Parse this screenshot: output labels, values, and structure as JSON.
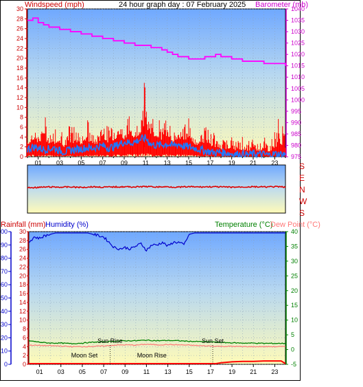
{
  "top_chart": {
    "title": "24 hour graph day : 07 February 2025",
    "left_label": "Windspeed (mph)",
    "right_label": "Barometer (mb)"
  },
  "direction_panel": {
    "compass_labels": [
      "S",
      "E",
      "N",
      "W",
      "S"
    ]
  },
  "bottom_chart": {
    "left_label_a": "Rainfall (mm)",
    "left_label_b": "Humidity (%)",
    "right_label_a": "Temperature (°C)",
    "right_label_b": "Dew Point (°C)",
    "annotations": [
      {
        "text": "Moon Set",
        "hour": 5.2
      },
      {
        "text": "Moon Rise",
        "hour": 11.5
      },
      {
        "text": "Sun Rise",
        "hour": 7.6
      },
      {
        "text": "Sun Set",
        "hour": 17.2
      }
    ]
  },
  "colors": {
    "wind_gust": "#ff0000",
    "wind_avg": "#1e78ff",
    "barometer": "#ff00ff",
    "direction": "#dd0000",
    "humidity": "#0000cc",
    "temperature": "#008000",
    "dew_point": "#ff7777",
    "rainfall": "#ff0000",
    "wind_axis": "#cc0000",
    "baro_axis": "#cc00cc",
    "humidity_axis": "#0000cc",
    "temp_axis": "#008000"
  },
  "chart_data": [
    {
      "type": "line",
      "title": "24 hour graph day : 07 February 2025",
      "xlabel": "",
      "ylabel": "Windspeed (mph)",
      "y2label": "Barometer (mb)",
      "x_ticks": [
        "01",
        "03",
        "05",
        "07",
        "09",
        "11",
        "13",
        "15",
        "17",
        "19",
        "21",
        "23"
      ],
      "xlim": [
        0,
        24
      ],
      "ylim": [
        0,
        30
      ],
      "y_ticks": [
        0,
        2,
        4,
        6,
        8,
        10,
        12,
        14,
        16,
        18,
        20,
        22,
        24,
        26,
        28,
        30
      ],
      "y2lim": [
        975,
        1040
      ],
      "y2_ticks": [
        975,
        980,
        985,
        990,
        995,
        1000,
        1005,
        1010,
        1015,
        1020,
        1025,
        1030,
        1035,
        1040
      ],
      "grid": true,
      "series": [
        {
          "name": "Barometer (mb)",
          "axis": "right",
          "x": [
            0,
            0.5,
            1,
            1.5,
            2,
            2.5,
            3,
            3.5,
            4,
            4.5,
            5,
            5.5,
            6,
            6.5,
            7,
            7.5,
            8,
            8.5,
            9,
            9.5,
            10,
            10.5,
            11,
            11.5,
            12,
            12.5,
            13,
            13.5,
            14,
            14.5,
            15,
            15.5,
            16,
            16.5,
            17,
            17.5,
            18,
            18.5,
            19,
            19.5,
            20,
            20.5,
            21,
            21.5,
            22,
            22.5,
            23,
            23.5,
            24
          ],
          "values": [
            1035,
            1036,
            1034,
            1033,
            1032,
            1032,
            1031,
            1031,
            1030,
            1030,
            1029,
            1029,
            1028,
            1028,
            1027,
            1027,
            1026,
            1026,
            1025,
            1025,
            1024,
            1024,
            1024,
            1023,
            1023,
            1022,
            1021,
            1020,
            1019,
            1019,
            1018,
            1018,
            1018,
            1019,
            1019,
            1020,
            1019,
            1019,
            1018,
            1018,
            1017,
            1017,
            1017,
            1017,
            1016,
            1016,
            1016,
            1016,
            1015
          ]
        },
        {
          "name": "Wind gust (mph)",
          "axis": "left",
          "x": [
            0,
            0.5,
            1,
            1.5,
            2,
            2.5,
            3,
            3.5,
            4,
            4.5,
            5,
            5.5,
            6,
            6.5,
            7,
            7.5,
            8,
            8.5,
            9,
            9.5,
            10,
            10.5,
            11,
            11.5,
            12,
            12.5,
            13,
            13.5,
            14,
            14.5,
            15,
            15.5,
            16,
            16.5,
            17,
            17.5,
            18,
            18.5,
            19,
            19.5,
            20,
            20.5,
            21,
            21.5,
            22,
            22.5,
            23,
            23.5,
            24
          ],
          "values": [
            4,
            7,
            5,
            9,
            6,
            5,
            8,
            4,
            7,
            6,
            5,
            8,
            5,
            4,
            9,
            6,
            7,
            8,
            5,
            9,
            6,
            8,
            15,
            7,
            9,
            6,
            8,
            5,
            7,
            6,
            9,
            4,
            5,
            8,
            6,
            5,
            3,
            4,
            5,
            3,
            4,
            3,
            4,
            3,
            4,
            3,
            5,
            9,
            4
          ]
        },
        {
          "name": "Wind average (mph)",
          "axis": "left",
          "x": [
            0,
            0.5,
            1,
            1.5,
            2,
            2.5,
            3,
            3.5,
            4,
            4.5,
            5,
            5.5,
            6,
            6.5,
            7,
            7.5,
            8,
            8.5,
            9,
            9.5,
            10,
            10.5,
            11,
            11.5,
            12,
            12.5,
            13,
            13.5,
            14,
            14.5,
            15,
            15.5,
            16,
            16.5,
            17,
            17.5,
            18,
            18.5,
            19,
            19.5,
            20,
            20.5,
            21,
            21.5,
            22,
            22.5,
            23,
            23.5,
            24
          ],
          "values": [
            1.5,
            2,
            1.8,
            1.5,
            1.6,
            1.8,
            1.2,
            1,
            1.3,
            1.5,
            1.6,
            1.8,
            1.7,
            2,
            2.2,
            1.8,
            2,
            2.5,
            3,
            2.8,
            3,
            3.5,
            3.8,
            2.5,
            2.3,
            2.4,
            2.6,
            2.2,
            2.6,
            2.2,
            2,
            1.8,
            1.5,
            1.2,
            1,
            0.8,
            0.9,
            0.8,
            0.6,
            0.5,
            0.5,
            0.4,
            0.6,
            0.5,
            0.5,
            0.3,
            0.6,
            0.5,
            0.5
          ]
        }
      ]
    },
    {
      "type": "line",
      "title": "",
      "ylabel": "Wind direction",
      "y_ticks": [
        "S",
        "E",
        "N",
        "W",
        "S"
      ],
      "xlim": [
        0,
        24
      ],
      "ylim": [
        0,
        360
      ],
      "series": [
        {
          "name": "Wind direction",
          "x": [
            0,
            1,
            2,
            3,
            4,
            5,
            6,
            7,
            8,
            9,
            10,
            11,
            12,
            13,
            14,
            15,
            16,
            17,
            18,
            19,
            20,
            21,
            22,
            23,
            24
          ],
          "values": [
            180,
            178,
            176,
            177,
            176,
            178,
            175,
            177,
            176,
            175,
            176,
            174,
            176,
            175,
            177,
            175,
            176,
            175,
            176,
            177,
            176,
            175,
            176,
            175,
            176
          ]
        }
      ]
    },
    {
      "type": "line",
      "title": "",
      "xlabel": "",
      "ylabel": "Rainfall (mm) / Humidity (%)",
      "y2label": "Temperature (°C) / Dew Point (°C)",
      "x_ticks": [
        "01",
        "03",
        "05",
        "07",
        "09",
        "11",
        "13",
        "15",
        "17",
        "19",
        "21",
        "23"
      ],
      "xlim": [
        0,
        24
      ],
      "rain_ticks": [
        0,
        2,
        4,
        6,
        8,
        10,
        12,
        14,
        16,
        18,
        20,
        22,
        24,
        26,
        28,
        30
      ],
      "humidity_ticks": [
        0,
        10,
        20,
        30,
        40,
        50,
        60,
        70,
        80,
        90,
        100
      ],
      "ylim": [
        0,
        100
      ],
      "y2lim": [
        -5,
        40
      ],
      "y2_ticks": [
        -5,
        0,
        5,
        10,
        15,
        20,
        25,
        30,
        35,
        40
      ],
      "grid": true,
      "series": [
        {
          "name": "Humidity (%)",
          "axis": "left",
          "x": [
            0,
            0.5,
            1,
            1.5,
            2,
            2.5,
            3,
            3.5,
            4,
            4.5,
            5,
            5.5,
            6,
            6.5,
            7,
            7.5,
            8,
            8.5,
            9,
            9.5,
            10,
            10.5,
            11,
            11.5,
            12,
            12.5,
            13,
            13.5,
            14,
            14.5,
            15,
            15.5,
            16,
            16.5,
            17,
            17.5,
            18,
            18.5,
            19,
            19.5,
            20,
            20.5,
            21,
            21.5,
            22,
            22.5,
            23,
            23.5,
            24
          ],
          "values": [
            92,
            96,
            95,
            97,
            98,
            99,
            99,
            99,
            99,
            99,
            99,
            99,
            98,
            97,
            96,
            92,
            88,
            87,
            88,
            87,
            89,
            91,
            86,
            90,
            90,
            92,
            89,
            92,
            92,
            90,
            98,
            99,
            99,
            99,
            99,
            99,
            99,
            99,
            99,
            99,
            99,
            99,
            99,
            99,
            99,
            99,
            99,
            99,
            99
          ]
        },
        {
          "name": "Temperature (°C)",
          "axis": "right",
          "x": [
            0,
            1,
            2,
            3,
            4,
            5,
            6,
            7,
            8,
            9,
            10,
            11,
            12,
            13,
            14,
            15,
            16,
            17,
            18,
            19,
            20,
            21,
            22,
            23,
            24
          ],
          "values": [
            3.0,
            2.5,
            2.2,
            2.2,
            2.0,
            2.2,
            2.5,
            2.6,
            2.8,
            3.0,
            3.0,
            3.2,
            3.0,
            3.1,
            3.0,
            2.8,
            2.7,
            2.6,
            2.4,
            2.3,
            2.2,
            2.2,
            2.1,
            2.1,
            2.1
          ]
        },
        {
          "name": "Dew Point (°C)",
          "axis": "right",
          "x": [
            0,
            1,
            2,
            3,
            4,
            5,
            6,
            7,
            8,
            9,
            10,
            11,
            12,
            13,
            14,
            15,
            16,
            17,
            18,
            19,
            20,
            21,
            22,
            23,
            24
          ],
          "values": [
            1.5,
            1.4,
            1.3,
            1.2,
            1.0,
            1.0,
            1.1,
            1.2,
            1.5,
            1.6,
            1.5,
            1.8,
            1.6,
            1.7,
            1.6,
            1.5,
            1.3,
            1.2,
            1.1,
            1.1,
            1.0,
            1.0,
            1.0,
            1.0,
            1.0
          ]
        },
        {
          "name": "Rainfall (mm)",
          "axis": "left-rain",
          "x": [
            0,
            2,
            4,
            6,
            8,
            10,
            12,
            14,
            16,
            17.5,
            18,
            19,
            20,
            21,
            22,
            23,
            23.6,
            24
          ],
          "values": [
            0,
            0,
            0,
            0,
            0,
            0,
            0,
            0,
            0,
            0,
            0.2,
            0.4,
            0.5,
            0.5,
            0.6,
            0.6,
            0.6,
            0
          ]
        }
      ]
    }
  ]
}
